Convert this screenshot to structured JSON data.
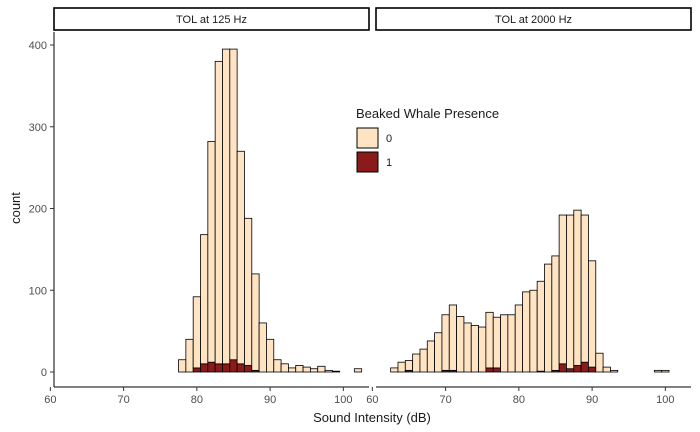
{
  "chart_data": {
    "type": "bar",
    "chart_subtype": "stacked histogram (faceted)",
    "xlabel": "Sound Intensity (dB)",
    "ylabel": "count",
    "xlim": [
      60.5,
      103.5
    ],
    "ylim": [
      0,
      410
    ],
    "x_ticks": [
      60,
      70,
      80,
      90,
      100
    ],
    "y_ticks": [
      0,
      100,
      200,
      300,
      400
    ],
    "bin_width": 1,
    "grid": false,
    "legend": {
      "title": "Beaked Whale Presence",
      "position": "inside-top-center",
      "entries": [
        {
          "label": "0",
          "color": "#FFE4C4"
        },
        {
          "label": "1",
          "color": "#8B1A1A"
        }
      ]
    },
    "panels": [
      {
        "title": "TOL at 125 Hz",
        "x": [
          61,
          62,
          63,
          64,
          65,
          66,
          67,
          68,
          69,
          70,
          71,
          72,
          73,
          74,
          75,
          76,
          77,
          78,
          79,
          80,
          81,
          82,
          83,
          84,
          85,
          86,
          87,
          88,
          89,
          90,
          91,
          92,
          93,
          94,
          95,
          96,
          97,
          98,
          99,
          100,
          101,
          102
        ],
        "series": [
          {
            "name": "0",
            "values": [
              0,
              0,
              0,
              0,
              0,
              0,
              0,
              0,
              0,
              0,
              0,
              0,
              0,
              0,
              0,
              0,
              0,
              15,
              40,
              87,
              158,
              270,
              370,
              385,
              380,
              260,
              180,
              118,
              60,
              40,
              15,
              10,
              5,
              8,
              6,
              4,
              7,
              2,
              1,
              0,
              0,
              4
            ]
          },
          {
            "name": "1",
            "values": [
              0,
              0,
              0,
              0,
              0,
              0,
              0,
              0,
              0,
              0,
              0,
              0,
              0,
              0,
              0,
              0,
              0,
              0,
              0,
              5,
              10,
              12,
              10,
              10,
              15,
              10,
              8,
              2,
              0,
              0,
              0,
              0,
              0,
              0,
              0,
              0,
              0,
              0,
              0,
              0,
              0,
              0
            ]
          }
        ]
      },
      {
        "title": "TOL at 2000 Hz",
        "x": [
          61,
          62,
          63,
          64,
          65,
          66,
          67,
          68,
          69,
          70,
          71,
          72,
          73,
          74,
          75,
          76,
          77,
          78,
          79,
          80,
          81,
          82,
          83,
          84,
          85,
          86,
          87,
          88,
          89,
          90,
          91,
          92,
          93,
          94,
          95,
          96,
          97,
          98,
          99,
          100,
          101,
          102
        ],
        "series": [
          {
            "name": "0",
            "values": [
              0,
              0,
              5,
              12,
              12,
              22,
              28,
              38,
              48,
              68,
              80,
              68,
              60,
              57,
              55,
              68,
              62,
              70,
              70,
              82,
              98,
              100,
              110,
              132,
              140,
              182,
              188,
              190,
              180,
              130,
              23,
              6,
              2,
              0,
              0,
              0,
              0,
              0,
              2,
              2,
              0,
              0
            ]
          },
          {
            "name": "1",
            "values": [
              0,
              0,
              0,
              0,
              2,
              0,
              0,
              0,
              0,
              2,
              2,
              0,
              0,
              0,
              0,
              5,
              5,
              0,
              0,
              0,
              0,
              0,
              1,
              0,
              2,
              10,
              4,
              8,
              12,
              6,
              0,
              0,
              0,
              0,
              0,
              0,
              0,
              0,
              0,
              0,
              0,
              0
            ]
          }
        ]
      }
    ]
  }
}
